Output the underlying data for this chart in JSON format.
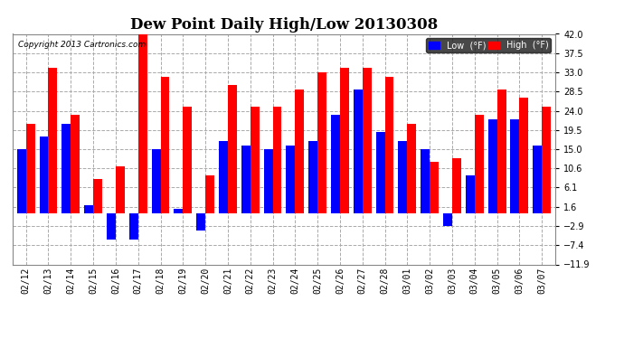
{
  "title": "Dew Point Daily High/Low 20130308",
  "copyright": "Copyright 2013 Cartronics.com",
  "dates": [
    "02/12",
    "02/13",
    "02/14",
    "02/15",
    "02/16",
    "02/17",
    "02/18",
    "02/19",
    "02/20",
    "02/21",
    "02/22",
    "02/23",
    "02/24",
    "02/25",
    "02/26",
    "02/27",
    "02/28",
    "03/01",
    "03/02",
    "03/03",
    "03/04",
    "03/05",
    "03/06",
    "03/07"
  ],
  "high": [
    21,
    34,
    23,
    8,
    11,
    43,
    32,
    25,
    9,
    30,
    25,
    25,
    29,
    33,
    34,
    34,
    32,
    21,
    12,
    13,
    23,
    29,
    27,
    25
  ],
  "low": [
    15,
    18,
    21,
    2,
    -6,
    -6,
    15,
    1,
    -4,
    17,
    16,
    15,
    16,
    17,
    23,
    29,
    19,
    17,
    15,
    -3,
    9,
    22,
    22,
    16
  ],
  "ylim": [
    -11.9,
    42.0
  ],
  "yticks": [
    -11.9,
    -7.4,
    -2.9,
    1.6,
    6.1,
    10.6,
    15.0,
    19.5,
    24.0,
    28.5,
    33.0,
    37.5,
    42.0
  ],
  "bar_width": 0.4,
  "high_color": "#FF0000",
  "low_color": "#0000FF",
  "background_color": "#FFFFFF",
  "grid_color": "#AAAAAA",
  "title_fontsize": 12,
  "tick_fontsize": 7,
  "figwidth": 6.9,
  "figheight": 3.75,
  "dpi": 100
}
